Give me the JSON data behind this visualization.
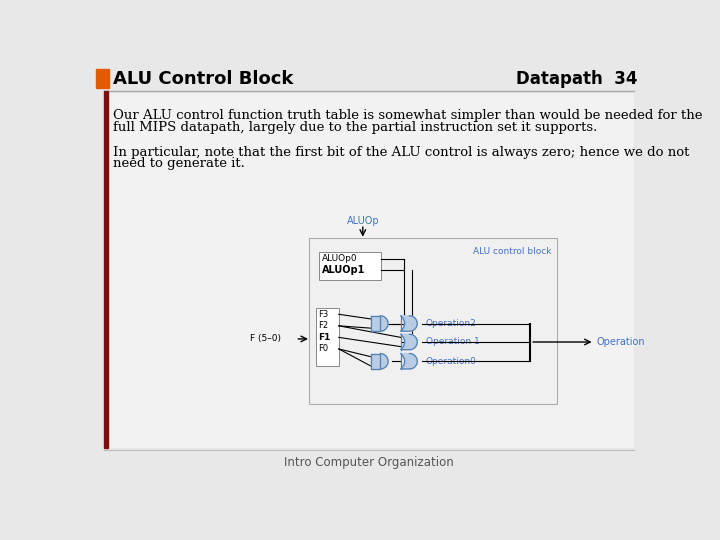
{
  "title_left": "ALU Control Block",
  "title_right": "Datapath  34",
  "title_bar_color": "#E05A00",
  "background_color": "#E8E8E8",
  "inner_bg_color": "#F2F2F2",
  "text_color": "#000000",
  "accent_color": "#7B1010",
  "para1_line1": "Our ALU control function truth table is somewhat simpler than would be needed for the",
  "para1_line2": "full MIPS datapath, largely due to the partial instruction set it supports.",
  "para2_line1": "In particular, note that the first bit of the ALU control is always zero; hence we do not",
  "para2_line2": "need to generate it.",
  "footer": "Intro Computer Organization",
  "dc": "#4472C4",
  "df": "#B8CCE4",
  "dtc": "#4472C4",
  "gate_edge": "#5580B0",
  "black": "#000000"
}
